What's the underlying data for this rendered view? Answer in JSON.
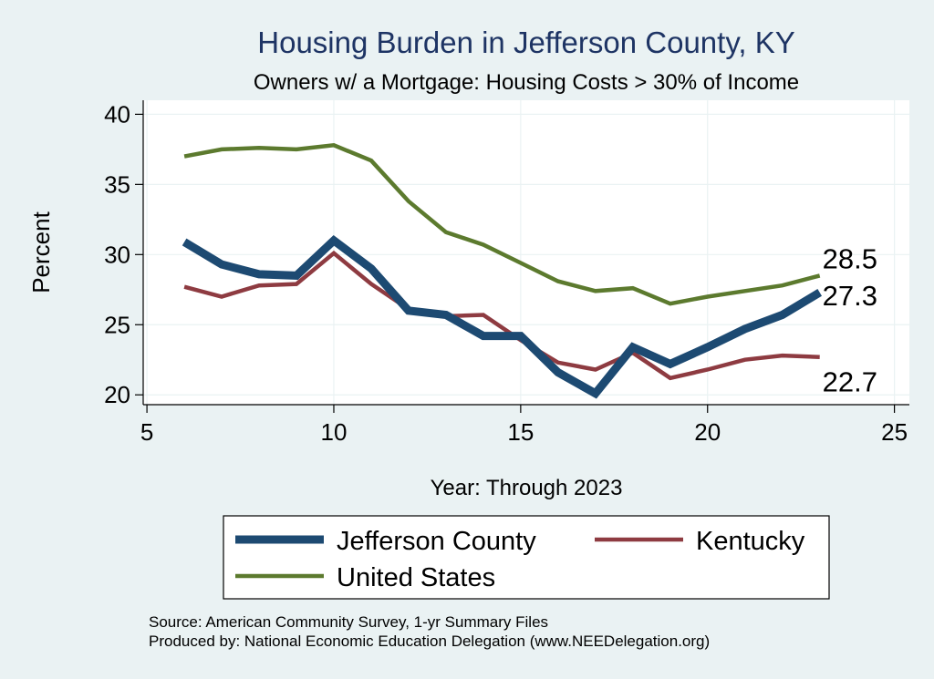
{
  "colors": {
    "background": "#eaf2f3",
    "plot_background": "#ffffff",
    "title": "#1e3464",
    "jefferson": "#1d4a72",
    "kentucky": "#8e3b41",
    "united_states": "#5c7a2e",
    "grid": "#eaf2f3",
    "axis": "#000000"
  },
  "chart_data": {
    "type": "line",
    "title": "Housing Burden in Jefferson County, KY",
    "subtitle": "Owners w/ a Mortgage: Housing Costs > 30% of Income",
    "xlabel": "Year: Through 2023",
    "ylabel": "Percent",
    "xlim": [
      4.9,
      25.4
    ],
    "ylim": [
      19.3,
      41
    ],
    "xticks": [
      5,
      10,
      15,
      20,
      25
    ],
    "yticks": [
      20,
      25,
      30,
      35,
      40
    ],
    "grid": true,
    "legend_position": "bottom",
    "x": [
      6,
      7,
      8,
      9,
      10,
      11,
      12,
      13,
      14,
      15,
      16,
      17,
      18,
      19,
      20,
      21,
      22,
      23
    ],
    "series": [
      {
        "name": "Jefferson County",
        "values": [
          30.9,
          29.3,
          28.6,
          28.5,
          31.0,
          29.0,
          26.0,
          25.7,
          24.2,
          24.2,
          21.6,
          20.1,
          23.4,
          22.2,
          23.4,
          24.7,
          25.7,
          27.3
        ],
        "end_label": "27.3",
        "color_key": "jefferson",
        "width": 9
      },
      {
        "name": "Kentucky",
        "values": [
          27.7,
          27.0,
          27.8,
          27.9,
          30.1,
          27.9,
          26.1,
          25.6,
          25.7,
          23.9,
          22.3,
          21.8,
          23.0,
          21.2,
          21.8,
          22.5,
          22.8,
          22.7
        ],
        "end_label": "22.7",
        "color_key": "kentucky",
        "width": 4.5
      },
      {
        "name": "United States",
        "values": [
          37.0,
          37.5,
          37.6,
          37.5,
          37.8,
          36.7,
          33.8,
          31.6,
          30.7,
          29.4,
          28.1,
          27.4,
          27.6,
          26.5,
          27.0,
          27.4,
          27.8,
          28.5
        ],
        "end_label": "28.5",
        "color_key": "united_states",
        "width": 4.5
      }
    ]
  },
  "source": "Source: American Community Survey, 1-yr Summary Files",
  "produced_by": "Produced by: National Economic Education Delegation (www.NEEDelegation.org)"
}
